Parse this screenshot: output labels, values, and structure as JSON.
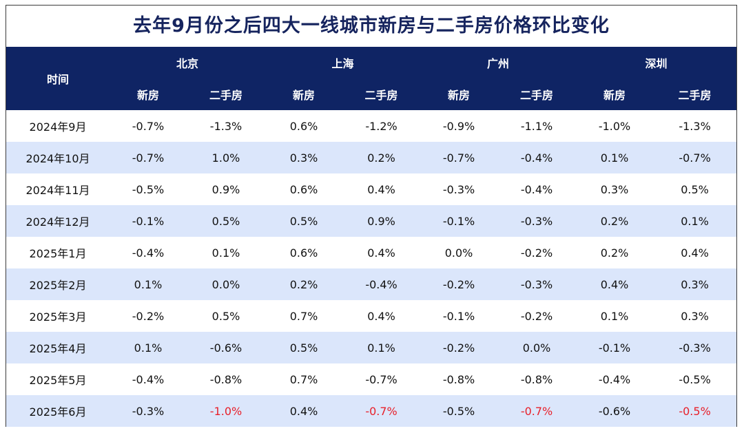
{
  "title": "去年9月份之后四大一线城市新房与二手房价格环比变化",
  "header": {
    "time_label": "时间",
    "cities": [
      "北京",
      "上海",
      "广州",
      "深圳"
    ],
    "sub_labels": [
      "新房",
      "二手房"
    ]
  },
  "colors": {
    "header_bg": "#0f2464",
    "stripe_bg": "#dbe6fb",
    "highlight_red": "#e8202a",
    "title_color": "#16245e"
  },
  "chart_data": {
    "type": "table",
    "title": "去年9月份之后四大一线城市新房与二手房价格环比变化",
    "columns": [
      "时间",
      "北京 新房",
      "北京 二手房",
      "上海 新房",
      "上海 二手房",
      "广州 新房",
      "广州 二手房",
      "深圳 新房",
      "深圳 二手房"
    ],
    "rows": [
      {
        "period": "2024年9月",
        "values": [
          "-0.7%",
          "-1.3%",
          "0.6%",
          "-1.2%",
          "-0.9%",
          "-1.1%",
          "-1.0%",
          "-1.3%"
        ]
      },
      {
        "period": "2024年10月",
        "values": [
          "-0.7%",
          "1.0%",
          "0.3%",
          "0.2%",
          "-0.7%",
          "-0.4%",
          "0.1%",
          "-0.7%"
        ]
      },
      {
        "period": "2024年11月",
        "values": [
          "-0.5%",
          "0.9%",
          "0.6%",
          "0.4%",
          "-0.3%",
          "-0.4%",
          "0.3%",
          "0.5%"
        ]
      },
      {
        "period": "2024年12月",
        "values": [
          "-0.1%",
          "0.5%",
          "0.5%",
          "0.9%",
          "-0.1%",
          "-0.3%",
          "0.2%",
          "0.1%"
        ]
      },
      {
        "period": "2025年1月",
        "values": [
          "-0.4%",
          "0.1%",
          "0.6%",
          "0.4%",
          "0.0%",
          "-0.2%",
          "0.2%",
          "0.4%"
        ]
      },
      {
        "period": "2025年2月",
        "values": [
          "0.1%",
          "0.0%",
          "0.2%",
          "-0.4%",
          "-0.2%",
          "-0.3%",
          "0.4%",
          "0.3%"
        ]
      },
      {
        "period": "2025年3月",
        "values": [
          "-0.2%",
          "0.5%",
          "0.7%",
          "0.4%",
          "-0.1%",
          "-0.2%",
          "0.1%",
          "0.3%"
        ]
      },
      {
        "period": "2025年4月",
        "values": [
          "0.1%",
          "-0.6%",
          "0.5%",
          "0.1%",
          "-0.2%",
          "0.0%",
          "-0.1%",
          "-0.3%"
        ]
      },
      {
        "period": "2025年5月",
        "values": [
          "-0.4%",
          "-0.8%",
          "0.7%",
          "-0.7%",
          "-0.8%",
          "-0.8%",
          "-0.4%",
          "-0.5%"
        ]
      },
      {
        "period": "2025年6月",
        "values": [
          "-0.3%",
          "-1.0%",
          "0.4%",
          "-0.7%",
          "-0.5%",
          "-0.7%",
          "-0.6%",
          "-0.5%"
        ],
        "highlight_columns": [
          1,
          3,
          5,
          7
        ]
      }
    ]
  }
}
